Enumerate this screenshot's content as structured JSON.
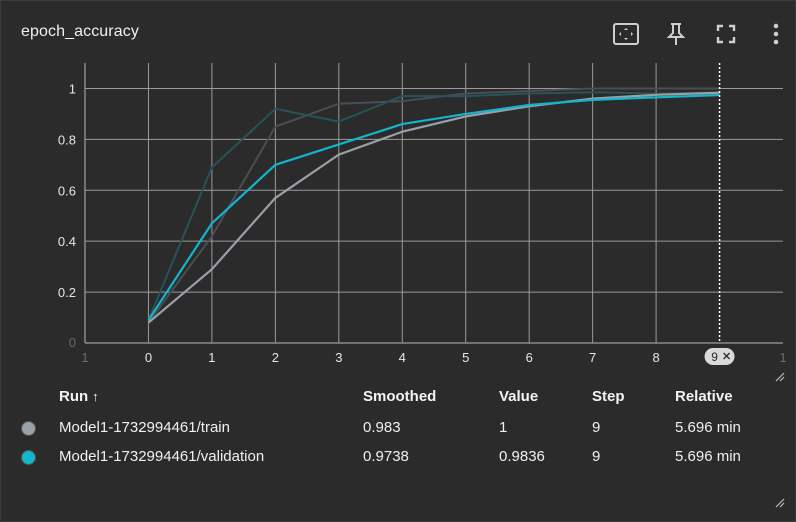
{
  "header": {
    "title": "epoch_accuracy"
  },
  "toolbar": {
    "icons": [
      "fit-domain-icon",
      "pin-icon",
      "fullscreen-icon",
      "more-vert-icon"
    ]
  },
  "chart_data": {
    "type": "line",
    "x": [
      0,
      1,
      2,
      3,
      4,
      5,
      6,
      7,
      8,
      9
    ],
    "xlim": [
      -1,
      10
    ],
    "ylim": [
      0,
      1.1
    ],
    "x_ticks": [
      "0",
      "1",
      "2",
      "3",
      "4",
      "5",
      "6",
      "7",
      "8"
    ],
    "x_ticks_faded": [
      "1",
      "1"
    ],
    "y_ticks": [
      "0.2",
      "0.4",
      "0.6",
      "0.8",
      "1"
    ],
    "y_tick_faded": "0",
    "grid": true,
    "cursor_step": "9",
    "series": [
      {
        "name": "Model1-1732994461/train",
        "role": "smoothed",
        "color": "#9aa0a8",
        "values": [
          0.08,
          0.29,
          0.57,
          0.74,
          0.83,
          0.89,
          0.93,
          0.96,
          0.975,
          0.983
        ]
      },
      {
        "name": "Model1-1732994461/validation",
        "role": "smoothed",
        "color": "#12b5cb",
        "values": [
          0.09,
          0.47,
          0.7,
          0.78,
          0.86,
          0.9,
          0.935,
          0.955,
          0.965,
          0.974
        ]
      },
      {
        "name": "Model1-1732994461/train",
        "role": "raw",
        "color": "#4a4d52",
        "values": [
          0.08,
          0.42,
          0.85,
          0.94,
          0.95,
          0.98,
          0.99,
          1.0,
          1.0,
          1.0
        ]
      },
      {
        "name": "Model1-1732994461/validation",
        "role": "raw",
        "color": "#26545a",
        "values": [
          0.09,
          0.69,
          0.92,
          0.87,
          0.97,
          0.97,
          0.98,
          0.985,
          0.98,
          0.9836
        ]
      }
    ]
  },
  "table": {
    "headers": {
      "run": "Run",
      "sort_arrow": "↑",
      "smoothed": "Smoothed",
      "value": "Value",
      "step": "Step",
      "relative": "Relative"
    },
    "rows": [
      {
        "color": "#9aa0a8",
        "run": "Model1-1732994461/train",
        "smoothed": "0.983",
        "value": "1",
        "step": "9",
        "relative": "5.696 min"
      },
      {
        "color": "#12b5cb",
        "run": "Model1-1732994461/validation",
        "smoothed": "0.9738",
        "value": "0.9836",
        "step": "9",
        "relative": "5.696 min"
      }
    ]
  }
}
